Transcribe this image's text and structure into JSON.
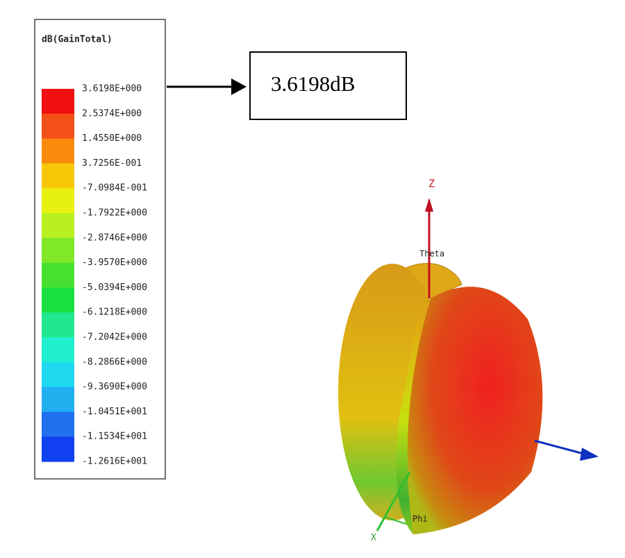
{
  "legend": {
    "title": "dB(GainTotal)",
    "labels": [
      "3.6198E+000",
      "2.5374E+000",
      "1.4550E+000",
      "3.7256E-001",
      "-7.0984E-001",
      "-1.7922E+000",
      "-2.8746E+000",
      "-3.9570E+000",
      "-5.0394E+000",
      "-6.1218E+000",
      "-7.2042E+000",
      "-8.2866E+000",
      "-9.3690E+000",
      "-1.0451E+001",
      "-1.1534E+001",
      "-1.2616E+001"
    ],
    "colors": [
      "#f01010",
      "#f6501a",
      "#f98a0c",
      "#f8c808",
      "#e8f010",
      "#b8f020",
      "#80e828",
      "#48e030",
      "#18e040",
      "#20e890",
      "#20f0d0",
      "#20d8f0",
      "#20b0f0",
      "#2070f0",
      "#1040f0"
    ]
  },
  "annotation": "3.6198dB",
  "axes": {
    "z": "Z",
    "theta": "Theta",
    "phi": "Phi",
    "x": "X"
  }
}
